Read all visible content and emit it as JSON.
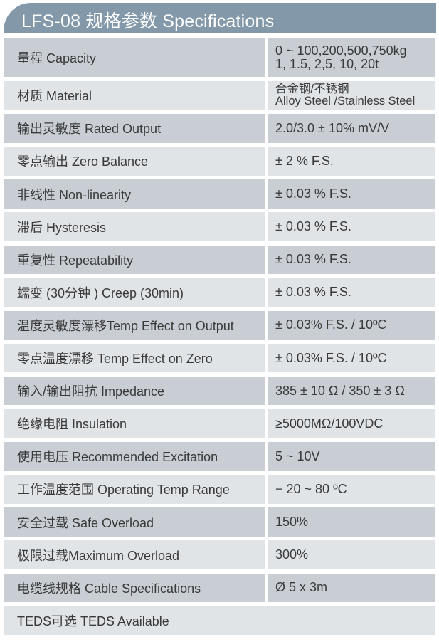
{
  "title": "LFS-08 规格参数 Specifications",
  "colors": {
    "header": "#8399aa",
    "row_dark": "#c9ced4",
    "row_light": "#e1e4e7"
  },
  "rows": [
    {
      "label": "量程 Capacity",
      "value": "0 ~ 100,200,500,750kg",
      "value2": "1, 1.5, 2,5, 10, 20t"
    },
    {
      "label": "材质 Material",
      "value": "合金钢/不锈钢",
      "value2": "Alloy Steel /Stainless Steel"
    },
    {
      "label": "输出灵敏度 Rated Output",
      "value": "2.0/3.0 ± 10% mV/V"
    },
    {
      "label": "零点输出  Zero Balance",
      "value": "± 2 % F.S."
    },
    {
      "label": "非线性 Non-linearity",
      "value": "± 0.03 % F.S."
    },
    {
      "label": "滞后 Hysteresis",
      "value": "± 0.03 % F.S."
    },
    {
      "label": "重复性 Repeatability",
      "value": "± 0.03 % F.S."
    },
    {
      "label": "蠕变 (30分钟 ) Creep (30min)",
      "value": "± 0.03 % F.S."
    },
    {
      "label": "温度灵敏度漂移Temp Effect on Output",
      "value": "± 0.03% F.S. / 10ºC"
    },
    {
      "label": "零点温度漂移 Temp Effect on Zero",
      "value": "± 0.03% F.S. / 10ºC"
    },
    {
      "label": "输入/输出阻抗 Impedance",
      "value": "385 ± 10 Ω / 350 ± 3 Ω"
    },
    {
      "label": "绝缘电阻  Insulation",
      "value": "≥5000MΩ/100VDC"
    },
    {
      "label": "使用电压 Recommended Excitation",
      "value": "5 ~ 10V"
    },
    {
      "label": "工作温度范围 Operating Temp  Range",
      "value": "− 20 ~ 80 ºC"
    },
    {
      "label": "安全过载 Safe Overload",
      "value": "150%"
    },
    {
      "label": "极限过载Maximum Overload",
      "value": "300%"
    },
    {
      "label": "电缆线规格 Cable Specifications",
      "value": "Ø 5 x 3m"
    },
    {
      "label": "TEDS可选 TEDS Available"
    }
  ]
}
